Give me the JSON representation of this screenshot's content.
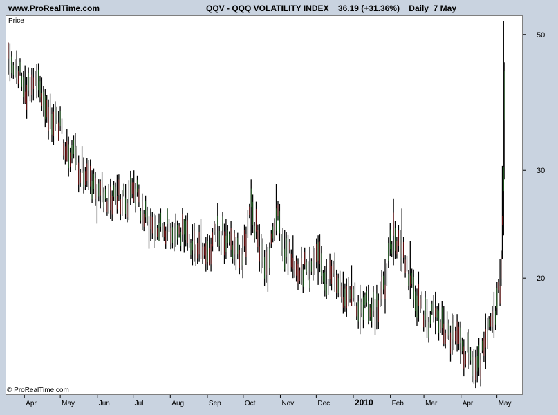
{
  "header": {
    "site": "www.ProRealTime.com",
    "ticker_line": "QQV - QQQ VOLATILITY INDEX    36.19 (+31.36%)    Daily  7 May"
  },
  "plot": {
    "price_label": "Price",
    "copyright": "© ProRealTime.com"
  },
  "chart_data": {
    "type": "line",
    "style": "bar-ohlc",
    "ylabel": "Price",
    "ylim": [
      13.2,
      52.5
    ],
    "y_scale": "log",
    "y_ticks": [
      20,
      30,
      50
    ],
    "x_ticks": [
      "Apr",
      "May",
      "Jun",
      "Jul",
      "Aug",
      "Sep",
      "Oct",
      "Nov",
      "Dec",
      "2010",
      "Feb",
      "Mar",
      "Apr",
      "May"
    ],
    "x": [
      "2009-03-18",
      "2009-03-25",
      "2009-04-01",
      "2009-04-08",
      "2009-04-15",
      "2009-04-22",
      "2009-04-29",
      "2009-05-06",
      "2009-05-13",
      "2009-05-20",
      "2009-05-27",
      "2009-06-03",
      "2009-06-10",
      "2009-06-17",
      "2009-06-24",
      "2009-07-01",
      "2009-07-08",
      "2009-07-15",
      "2009-07-22",
      "2009-07-29",
      "2009-08-05",
      "2009-08-12",
      "2009-08-19",
      "2009-08-26",
      "2009-09-02",
      "2009-09-09",
      "2009-09-16",
      "2009-09-23",
      "2009-09-30",
      "2009-10-07",
      "2009-10-14",
      "2009-10-21",
      "2009-10-28",
      "2009-11-04",
      "2009-11-11",
      "2009-11-18",
      "2009-11-25",
      "2009-12-02",
      "2009-12-09",
      "2009-12-16",
      "2009-12-23",
      "2009-12-30",
      "2010-01-06",
      "2010-01-13",
      "2010-01-20",
      "2010-01-27",
      "2010-02-03",
      "2010-02-10",
      "2010-02-17",
      "2010-02-24",
      "2010-03-03",
      "2010-03-10",
      "2010-03-17",
      "2010-03-24",
      "2010-03-31",
      "2010-04-07",
      "2010-04-14",
      "2010-04-21",
      "2010-04-28",
      "2010-05-03",
      "2010-05-05",
      "2010-05-06",
      "2010-05-07"
    ],
    "values": [
      46.0,
      44.0,
      41.0,
      42.0,
      40.0,
      37.5,
      35.5,
      33.0,
      32.0,
      29.5,
      28.0,
      27.5,
      27.0,
      27.5,
      26.5,
      28.5,
      25.5,
      24.5,
      24.0,
      24.5,
      24.0,
      23.5,
      22.5,
      23.0,
      22.0,
      24.5,
      23.0,
      22.5,
      21.5,
      26.0,
      22.5,
      20.5,
      25.5,
      22.0,
      21.5,
      21.0,
      20.5,
      21.5,
      20.0,
      20.5,
      19.0,
      19.5,
      17.5,
      18.0,
      18.0,
      19.5,
      24.0,
      22.5,
      20.0,
      18.5,
      17.0,
      17.5,
      16.5,
      16.0,
      15.5,
      15.0,
      14.0,
      15.5,
      17.5,
      19.5,
      24.0,
      30.0,
      36.19
    ],
    "highs": [
      48.5,
      47.0,
      44.5,
      44.0,
      42.5,
      40.0,
      37.5,
      35.0,
      34.5,
      31.5,
      30.0,
      29.0,
      28.5,
      29.5,
      28.5,
      30.0,
      27.5,
      26.0,
      25.5,
      26.0,
      25.5,
      25.0,
      24.5,
      25.0,
      23.5,
      26.5,
      25.0,
      24.0,
      23.5,
      29.0,
      24.5,
      22.5,
      28.5,
      24.0,
      23.5,
      22.5,
      22.5,
      23.5,
      21.5,
      22.0,
      20.5,
      21.0,
      19.5,
      19.5,
      19.5,
      21.5,
      27.0,
      26.0,
      23.0,
      20.5,
      18.5,
      19.0,
      18.0,
      17.5,
      17.0,
      16.5,
      15.5,
      17.5,
      19.0,
      21.5,
      30.5,
      52.5,
      45.0
    ],
    "lows": [
      43.0,
      41.5,
      38.5,
      39.0,
      37.5,
      35.0,
      33.5,
      31.0,
      30.0,
      27.5,
      26.5,
      26.0,
      25.5,
      25.5,
      25.0,
      26.5,
      24.0,
      23.0,
      23.0,
      23.0,
      22.5,
      22.0,
      21.0,
      21.5,
      21.0,
      22.5,
      21.5,
      21.0,
      20.0,
      23.5,
      20.5,
      19.0,
      23.5,
      20.5,
      20.0,
      19.5,
      19.0,
      19.5,
      18.5,
      19.0,
      17.5,
      18.0,
      16.2,
      16.8,
      16.5,
      17.5,
      21.0,
      20.5,
      18.5,
      17.0,
      16.0,
      16.2,
      15.5,
      15.0,
      14.5,
      14.2,
      13.5,
      14.2,
      16.0,
      18.0,
      21.5,
      23.5,
      29.0
    ]
  }
}
